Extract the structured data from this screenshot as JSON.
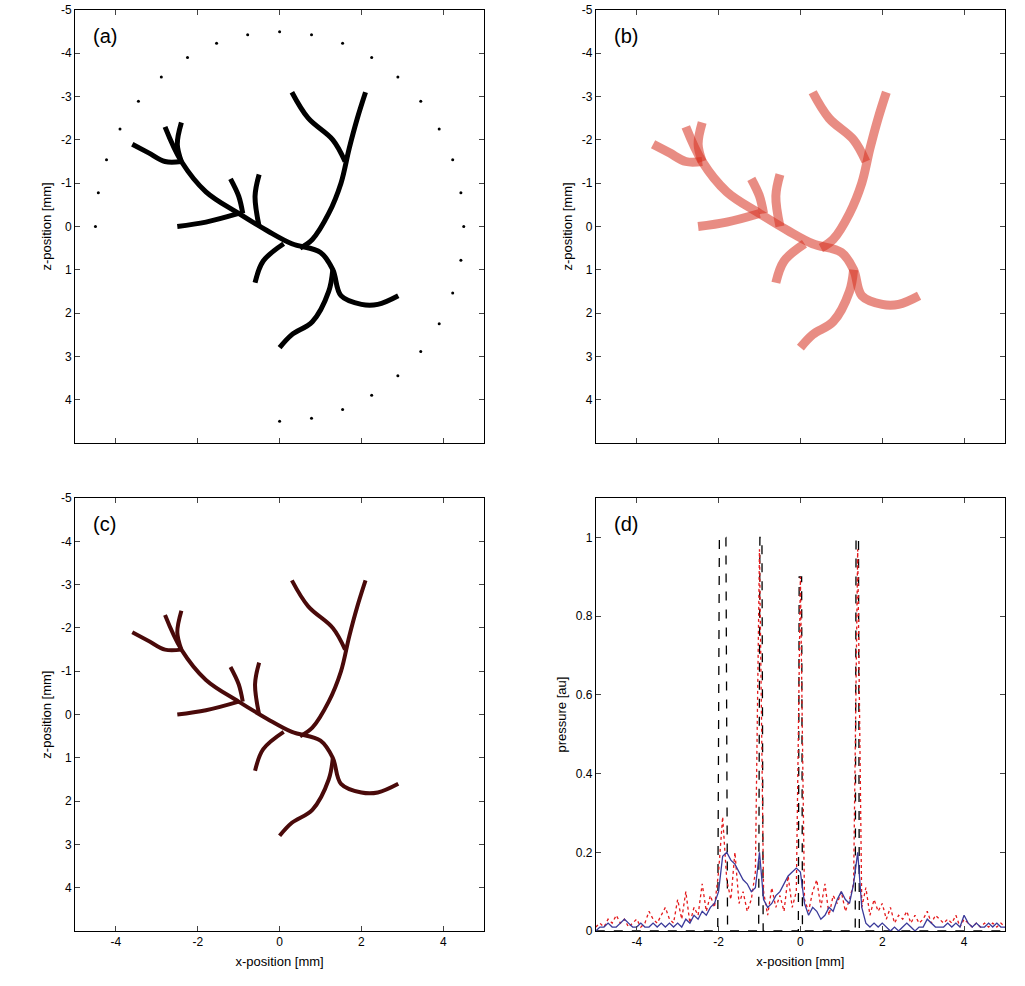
{
  "chart_data": [
    {
      "type": "line",
      "title": "(a)",
      "ylabel": "z-position [mm]",
      "xlim": [
        -5,
        5
      ],
      "ylim": [
        5,
        -5
      ],
      "xticks": [
        -4,
        -2,
        0,
        2,
        4
      ],
      "yticks": [
        -5,
        -4,
        -3,
        -2,
        -1,
        0,
        1,
        2,
        3,
        4
      ],
      "tick_labels": "y",
      "color": "#000000",
      "segments": [
        {
          "x": [
            -2.8,
            -2.4,
            -1.8,
            -1.0,
            -0.3,
            0.3,
            1.0,
            1.3,
            1.5,
            2.0,
            2.4,
            2.9
          ],
          "values": [
            -2.3,
            -1.5,
            -0.8,
            -0.3,
            0.1,
            0.4,
            0.6,
            1.0,
            1.6,
            1.8,
            1.8,
            1.6
          ]
        },
        {
          "x": [
            -3.6,
            -3.2,
            -2.8,
            -2.4
          ],
          "values": [
            -1.9,
            -1.7,
            -1.5,
            -1.5
          ]
        },
        {
          "x": [
            -2.4,
            -2.5,
            -2.4
          ],
          "values": [
            -2.4,
            -1.9,
            -1.5
          ]
        },
        {
          "x": [
            -2.5,
            -1.8,
            -1.0
          ],
          "values": [
            0.0,
            -0.1,
            -0.3
          ]
        },
        {
          "x": [
            -1.2,
            -1.0,
            -0.9
          ],
          "values": [
            -1.1,
            -0.7,
            -0.3
          ]
        },
        {
          "x": [
            -0.5,
            -0.6,
            -0.5
          ],
          "values": [
            -1.2,
            -0.7,
            0.0
          ]
        },
        {
          "x": [
            0.5,
            0.8,
            1.2,
            1.5,
            1.7,
            1.9,
            2.1
          ],
          "values": [
            0.5,
            0.3,
            -0.3,
            -1.0,
            -1.8,
            -2.5,
            -3.1
          ]
        },
        {
          "x": [
            0.3,
            0.7,
            1.3,
            1.6
          ],
          "values": [
            -3.1,
            -2.5,
            -2.0,
            -1.5
          ]
        },
        {
          "x": [
            1.3,
            1.2,
            0.8,
            0.3,
            0.0
          ],
          "values": [
            1.0,
            1.5,
            2.2,
            2.5,
            2.8
          ]
        },
        {
          "x": [
            0.1,
            -0.4,
            -0.6
          ],
          "values": [
            0.4,
            0.8,
            1.3
          ]
        }
      ],
      "sensors": {
        "marker": "circle",
        "color": "#000000",
        "x": [
          -4.5,
          -4.43,
          -4.23,
          -3.9,
          -3.45,
          -2.89,
          -2.25,
          -1.54,
          -0.78,
          0,
          0.78,
          1.54,
          2.25,
          2.89,
          3.45,
          3.9,
          4.23,
          4.43,
          4.5,
          4.43,
          4.23,
          3.9,
          3.45,
          2.89,
          2.25,
          1.54,
          0.78,
          0
        ],
        "values": [
          0,
          -0.78,
          -1.54,
          -2.25,
          -2.89,
          -3.45,
          -3.9,
          -4.23,
          -4.43,
          -4.5,
          -4.43,
          -4.23,
          -3.9,
          -3.45,
          -2.89,
          -2.25,
          -1.54,
          -0.78,
          0,
          0.78,
          1.54,
          2.25,
          2.89,
          3.45,
          3.9,
          4.23,
          4.43,
          4.5
        ]
      }
    },
    {
      "type": "line",
      "title": "(b)",
      "ylabel": "z-position [mm]",
      "xlim": [
        -5,
        5
      ],
      "ylim": [
        5,
        -5
      ],
      "xticks": [
        -4,
        -2,
        0,
        2,
        4
      ],
      "yticks": [
        -5,
        -4,
        -3,
        -2,
        -1,
        0,
        1,
        2,
        3,
        4
      ],
      "tick_labels": "y",
      "color": "#d7301f",
      "segments": [
        {
          "x": [
            -2.8,
            -2.4,
            -1.8,
            -1.0,
            -0.3,
            0.3,
            1.0,
            1.3,
            1.5,
            2.0,
            2.4,
            2.9
          ],
          "values": [
            -2.3,
            -1.5,
            -0.8,
            -0.3,
            0.1,
            0.4,
            0.6,
            1.0,
            1.6,
            1.8,
            1.8,
            1.6
          ]
        },
        {
          "x": [
            -3.6,
            -3.2,
            -2.8,
            -2.4
          ],
          "values": [
            -1.9,
            -1.7,
            -1.5,
            -1.5
          ]
        },
        {
          "x": [
            -2.4,
            -2.5,
            -2.4
          ],
          "values": [
            -2.4,
            -1.9,
            -1.5
          ]
        },
        {
          "x": [
            -2.5,
            -1.8,
            -1.0
          ],
          "values": [
            0.0,
            -0.1,
            -0.3
          ]
        },
        {
          "x": [
            -1.2,
            -1.0,
            -0.9
          ],
          "values": [
            -1.1,
            -0.7,
            -0.3
          ]
        },
        {
          "x": [
            -0.5,
            -0.6,
            -0.5
          ],
          "values": [
            -1.2,
            -0.7,
            0.0
          ]
        },
        {
          "x": [
            0.5,
            0.8,
            1.2,
            1.5,
            1.7,
            1.9,
            2.1
          ],
          "values": [
            0.5,
            0.3,
            -0.3,
            -1.0,
            -1.8,
            -2.5,
            -3.1
          ]
        },
        {
          "x": [
            0.3,
            0.7,
            1.3,
            1.6
          ],
          "values": [
            -3.1,
            -2.5,
            -2.0,
            -1.5
          ]
        },
        {
          "x": [
            1.3,
            1.2,
            0.8,
            0.3,
            0.0
          ],
          "values": [
            1.0,
            1.5,
            2.2,
            2.5,
            2.8
          ]
        },
        {
          "x": [
            0.1,
            -0.4,
            -0.6
          ],
          "values": [
            0.4,
            0.8,
            1.3
          ]
        }
      ]
    },
    {
      "type": "line",
      "title": "(c)",
      "xlabel": "x-position [mm]",
      "ylabel": "z-position [mm]",
      "xlim": [
        -5,
        5
      ],
      "ylim": [
        5,
        -5
      ],
      "xticks": [
        -4,
        -2,
        0,
        2,
        4
      ],
      "yticks": [
        -5,
        -4,
        -3,
        -2,
        -1,
        0,
        1,
        2,
        3,
        4
      ],
      "color": "#4a0a0a",
      "segments": [
        {
          "x": [
            -2.8,
            -2.4,
            -1.8,
            -1.0,
            -0.3,
            0.3,
            1.0,
            1.3,
            1.5,
            2.0,
            2.4,
            2.9
          ],
          "values": [
            -2.3,
            -1.5,
            -0.8,
            -0.3,
            0.1,
            0.4,
            0.6,
            1.0,
            1.6,
            1.8,
            1.8,
            1.6
          ]
        },
        {
          "x": [
            -3.6,
            -3.2,
            -2.8,
            -2.4
          ],
          "values": [
            -1.9,
            -1.7,
            -1.5,
            -1.5
          ]
        },
        {
          "x": [
            -2.4,
            -2.5,
            -2.4
          ],
          "values": [
            -2.4,
            -1.9,
            -1.5
          ]
        },
        {
          "x": [
            -2.5,
            -1.8,
            -1.0
          ],
          "values": [
            0.0,
            -0.1,
            -0.3
          ]
        },
        {
          "x": [
            -1.2,
            -1.0,
            -0.9
          ],
          "values": [
            -1.1,
            -0.7,
            -0.3
          ]
        },
        {
          "x": [
            -0.5,
            -0.6,
            -0.5
          ],
          "values": [
            -1.2,
            -0.7,
            0.0
          ]
        },
        {
          "x": [
            0.5,
            0.8,
            1.2,
            1.5,
            1.7,
            1.9,
            2.1
          ],
          "values": [
            0.5,
            0.3,
            -0.3,
            -1.0,
            -1.8,
            -2.5,
            -3.1
          ]
        },
        {
          "x": [
            0.3,
            0.7,
            1.3,
            1.6
          ],
          "values": [
            -3.1,
            -2.5,
            -2.0,
            -1.5
          ]
        },
        {
          "x": [
            1.3,
            1.2,
            0.8,
            0.3,
            0.0
          ],
          "values": [
            1.0,
            1.5,
            2.2,
            2.5,
            2.8
          ]
        },
        {
          "x": [
            0.1,
            -0.4,
            -0.6
          ],
          "values": [
            0.4,
            0.8,
            1.3
          ]
        }
      ]
    },
    {
      "type": "line",
      "title": "(d)",
      "xlabel": "x-position [mm]",
      "ylabel": "pressure [au]",
      "xlim": [
        -5,
        5
      ],
      "ylim": [
        0,
        1.1
      ],
      "xticks": [
        -4,
        -2,
        0,
        2,
        4
      ],
      "yticks": [
        0,
        0.2,
        0.4,
        0.6,
        0.8,
        1
      ],
      "series": [
        {
          "color": "#000000",
          "line_style": "dash",
          "x": [
            -5,
            -2.02,
            -1.98,
            -1.82,
            -1.78,
            -1.02,
            -0.99,
            -0.94,
            -0.91,
            -0.05,
            -0.03,
            0.03,
            0.05,
            1.34,
            1.36,
            1.42,
            1.44,
            5
          ],
          "values": [
            0,
            0,
            1,
            1,
            0,
            0,
            1,
            1,
            0,
            0,
            0.9,
            0.9,
            0,
            0,
            1,
            1,
            0,
            0
          ]
        },
        {
          "color": "#e41a1c",
          "line_style": "dot",
          "x": [
            -5,
            -4.9,
            -4.8,
            -4.7,
            -4.6,
            -4.5,
            -4.4,
            -4.3,
            -4.2,
            -4.1,
            -4,
            -3.9,
            -3.8,
            -3.7,
            -3.6,
            -3.5,
            -3.4,
            -3.3,
            -3.2,
            -3.1,
            -3,
            -2.9,
            -2.8,
            -2.7,
            -2.6,
            -2.5,
            -2.4,
            -2.3,
            -2.2,
            -2.1,
            -2,
            -1.9,
            -1.8,
            -1.7,
            -1.6,
            -1.5,
            -1.4,
            -1.3,
            -1.2,
            -1.1,
            -1,
            -0.9,
            -0.8,
            -0.7,
            -0.6,
            -0.5,
            -0.4,
            -0.3,
            -0.2,
            -0.1,
            0,
            0.1,
            0.2,
            0.3,
            0.4,
            0.5,
            0.6,
            0.7,
            0.8,
            0.9,
            1,
            1.1,
            1.2,
            1.3,
            1.4,
            1.5,
            1.6,
            1.7,
            1.8,
            1.9,
            2,
            2.1,
            2.2,
            2.3,
            2.4,
            2.5,
            2.6,
            2.7,
            2.8,
            2.9,
            3,
            3.1,
            3.2,
            3.3,
            3.4,
            3.5,
            3.6,
            3.7,
            3.8,
            3.9,
            4,
            4.1,
            4.2,
            4.3,
            4.4,
            4.5,
            4.6,
            4.7,
            4.8,
            4.9,
            5
          ],
          "values": [
            0.01,
            0.02,
            0.01,
            0.03,
            0.02,
            0.04,
            0.02,
            0.03,
            0.01,
            0.02,
            0.03,
            0.01,
            0.02,
            0.05,
            0.03,
            0.02,
            0.04,
            0.06,
            0.03,
            0.02,
            0.08,
            0.03,
            0.1,
            0.02,
            0.06,
            0.04,
            0.12,
            0.05,
            0.09,
            0.06,
            0.15,
            0.29,
            0.13,
            0.08,
            0.2,
            0.07,
            0.1,
            0.05,
            0.08,
            0.15,
            0.97,
            0.1,
            0.04,
            0.11,
            0.06,
            0.09,
            0.05,
            0.14,
            0.06,
            0.1,
            0.9,
            0.08,
            0.05,
            0.1,
            0.13,
            0.06,
            0.12,
            0.04,
            0.09,
            0.07,
            0.1,
            0.05,
            0.08,
            0.12,
            0.97,
            0.06,
            0.11,
            0.04,
            0.08,
            0.05,
            0.07,
            0.03,
            0.06,
            0.02,
            0.04,
            0.03,
            0.05,
            0.02,
            0.04,
            0.02,
            0.03,
            0.05,
            0.02,
            0.04,
            0.03,
            0.02,
            0.03,
            0.02,
            0.04,
            0.01,
            0.03,
            0.02,
            0.01,
            0.02,
            0.01,
            0.02,
            0.01,
            0.02,
            0.01,
            0.02,
            0.01
          ]
        },
        {
          "color": "#3a3a9a",
          "line_style": "solid",
          "x": [
            -5,
            -4.9,
            -4.8,
            -4.7,
            -4.6,
            -4.5,
            -4.4,
            -4.3,
            -4.2,
            -4.1,
            -4,
            -3.9,
            -3.8,
            -3.7,
            -3.6,
            -3.5,
            -3.4,
            -3.3,
            -3.2,
            -3.1,
            -3,
            -2.9,
            -2.8,
            -2.7,
            -2.6,
            -2.5,
            -2.4,
            -2.3,
            -2.2,
            -2.1,
            -2,
            -1.9,
            -1.8,
            -1.7,
            -1.6,
            -1.5,
            -1.4,
            -1.3,
            -1.2,
            -1.1,
            -1,
            -0.9,
            -0.8,
            -0.7,
            -0.6,
            -0.5,
            -0.4,
            -0.3,
            -0.2,
            -0.1,
            0,
            0.1,
            0.2,
            0.3,
            0.4,
            0.5,
            0.6,
            0.7,
            0.8,
            0.9,
            1,
            1.1,
            1.2,
            1.3,
            1.4,
            1.5,
            1.6,
            1.7,
            1.8,
            1.9,
            2,
            2.1,
            2.2,
            2.3,
            2.4,
            2.5,
            2.6,
            2.7,
            2.8,
            2.9,
            3,
            3.1,
            3.2,
            3.3,
            3.4,
            3.5,
            3.6,
            3.7,
            3.8,
            3.9,
            4,
            4.1,
            4.2,
            4.3,
            4.4,
            4.5,
            4.6,
            4.7,
            4.8,
            4.9,
            5
          ],
          "values": [
            0,
            0.01,
            0.01,
            0.02,
            0.01,
            0.01,
            0.02,
            0.03,
            0.02,
            0.01,
            0.01,
            0.02,
            0.01,
            0.01,
            0.02,
            0.01,
            0.02,
            0.01,
            0.02,
            0.01,
            0.02,
            0.01,
            0.03,
            0.02,
            0.04,
            0.03,
            0.05,
            0.04,
            0.06,
            0.07,
            0.1,
            0.19,
            0.2,
            0.18,
            0.17,
            0.15,
            0.13,
            0.12,
            0.1,
            0.11,
            0.2,
            0.08,
            0.06,
            0.07,
            0.09,
            0.1,
            0.12,
            0.14,
            0.15,
            0.16,
            0.15,
            0.07,
            0.04,
            0.06,
            0.05,
            0.03,
            0.04,
            0.06,
            0.05,
            0.08,
            0.1,
            0.08,
            0.07,
            0.12,
            0.2,
            0.06,
            0.02,
            0.01,
            0.02,
            0.01,
            0.02,
            0.01,
            0,
            0.01,
            0,
            0.01,
            0.02,
            0.01,
            0,
            0.01,
            0.01,
            0.03,
            0.02,
            0.01,
            0.01,
            0.01,
            0.02,
            0.01,
            0.02,
            0.01,
            0.04,
            0.02,
            0.01,
            0.02,
            0.01,
            0.01,
            0.02,
            0.01,
            0.02,
            0.01,
            0.01
          ]
        }
      ]
    }
  ]
}
